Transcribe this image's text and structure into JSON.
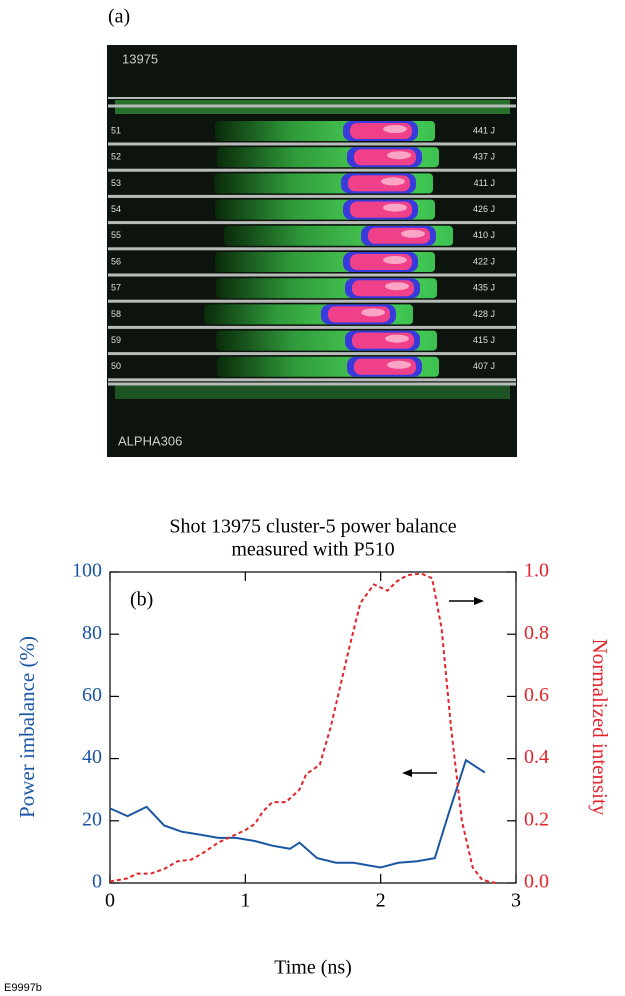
{
  "panel_a": {
    "label": "(a)",
    "shot": "13975",
    "camera": "ALPHA306",
    "beams": [
      "51",
      "52",
      "53",
      "54",
      "55",
      "56",
      "57",
      "58",
      "59",
      "50"
    ],
    "energies": [
      "441 J",
      "437 J",
      "411 J",
      "426 J",
      "410 J",
      "422 J",
      "435 J",
      "428 J",
      "415 J",
      "407 J"
    ]
  },
  "chart_data": {
    "type": "line",
    "title": [
      "Shot 13975 cluster-5 power balance",
      "measured with P510"
    ],
    "panel_label": "(b)",
    "xlabel": "Time (ns)",
    "ylabel": "Power imbalance (%)",
    "y2label": "Normalized intensity",
    "xlim": [
      0,
      3
    ],
    "xticks": [
      0,
      1,
      2,
      3
    ],
    "ylim": [
      0,
      100
    ],
    "yticks": [
      0,
      20,
      40,
      60,
      80,
      100
    ],
    "y2lim": [
      0,
      1
    ],
    "y2ticks": [
      {
        "value": 0,
        "label": "0.0"
      },
      0.2,
      0.4,
      0.6,
      0.8,
      {
        "value": 1,
        "label": "1.0"
      }
    ],
    "series": [
      {
        "color": "#1b56a3",
        "dash": false,
        "axis": "y",
        "x": [
          0,
          0.13,
          0.27,
          0.4,
          0.53,
          0.67,
          0.8,
          0.93,
          1.07,
          1.2,
          1.33,
          1.4,
          1.53,
          1.67,
          1.8,
          1.93,
          2.0,
          2.13,
          2.27,
          2.4,
          2.5,
          2.63,
          2.77
        ],
        "values": [
          24,
          21.5,
          24.5,
          18.5,
          16.5,
          15.5,
          14.5,
          14.5,
          13.5,
          12,
          11,
          13,
          8,
          6.5,
          6.5,
          5.5,
          5,
          6.5,
          7,
          8,
          22,
          39.5,
          35.5
        ]
      },
      {
        "color": "#e2242b",
        "dash": true,
        "axis": "y2",
        "x": [
          0,
          0.13,
          0.2,
          0.3,
          0.4,
          0.5,
          0.6,
          0.7,
          0.8,
          0.9,
          1.0,
          1.07,
          1.13,
          1.2,
          1.3,
          1.4,
          1.45,
          1.55,
          1.63,
          1.7,
          1.77,
          1.85,
          1.95,
          2.05,
          2.12,
          2.2,
          2.3,
          2.38,
          2.45,
          2.52,
          2.6,
          2.68,
          2.75,
          2.85
        ],
        "values": [
          0.005,
          0.015,
          0.03,
          0.03,
          0.045,
          0.07,
          0.075,
          0.1,
          0.13,
          0.15,
          0.17,
          0.19,
          0.23,
          0.26,
          0.26,
          0.3,
          0.35,
          0.38,
          0.5,
          0.63,
          0.76,
          0.9,
          0.96,
          0.94,
          0.97,
          0.99,
          0.995,
          0.98,
          0.82,
          0.5,
          0.2,
          0.05,
          0.01,
          0
        ]
      }
    ]
  },
  "figure_id": "E9997b"
}
